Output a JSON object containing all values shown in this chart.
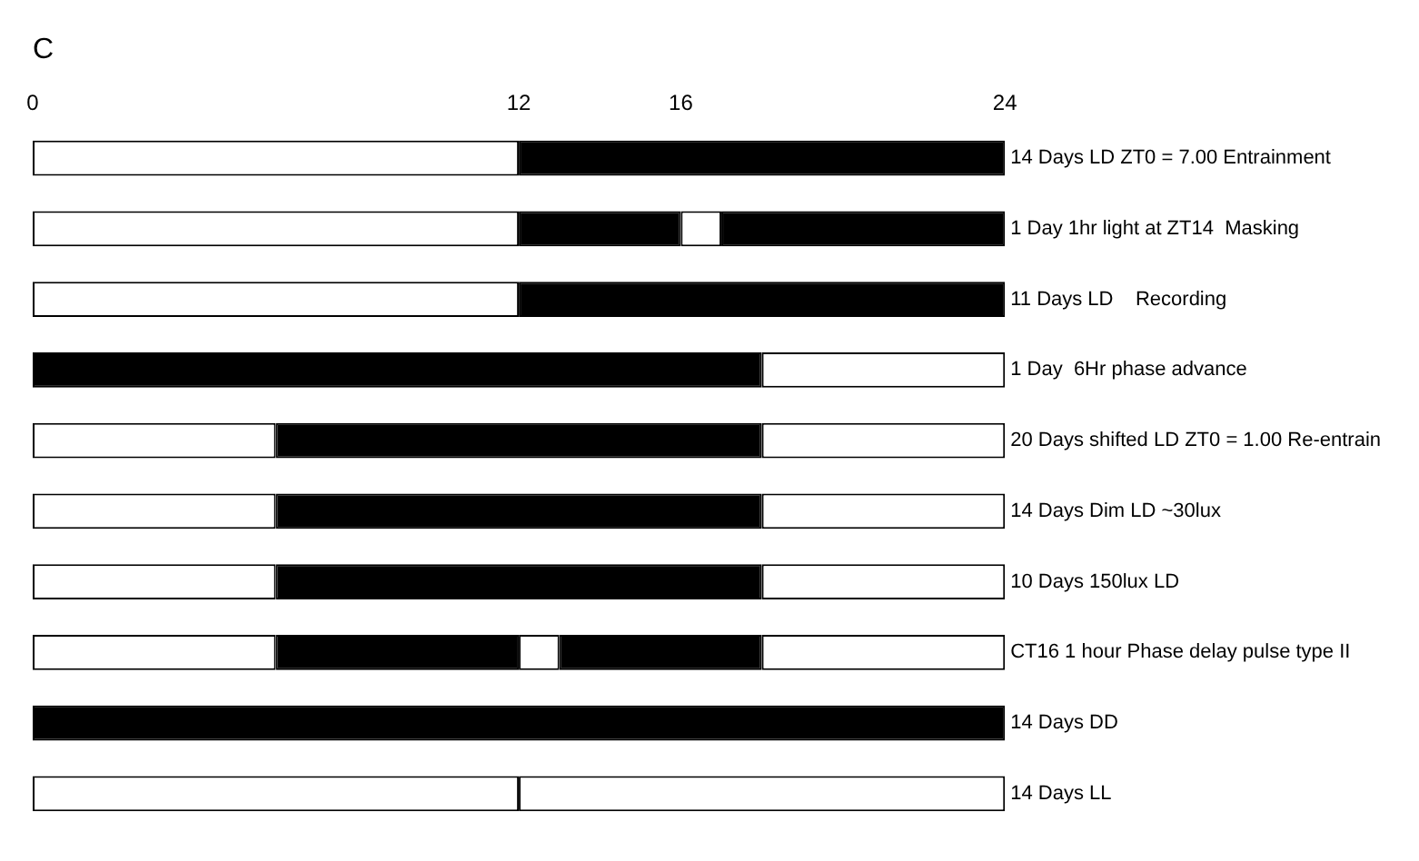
{
  "chart_data": {
    "type": "bar",
    "orientation": "horizontal",
    "stacked": true,
    "title": "C",
    "categories": [
      "14 Days LD ZT0 = 7.00 Entrainment",
      "1 Day 1hr light at ZT14  Masking",
      "11 Days LD    Recording",
      "1 Day  6Hr phase advance",
      "20 Days shifted LD ZT0 = 1.00 Re-entrain",
      "14 Days Dim LD ~30lux",
      "10 Days 150lux LD",
      "CT16 1 hour Phase delay pulse type II",
      "14 Days DD",
      "14 Days LL"
    ],
    "series": [
      {
        "values": [
          12,
          12,
          12,
          18,
          6,
          6,
          6,
          6,
          24,
          12
        ],
        "colors": [
          "#ffffff",
          "#ffffff",
          "#ffffff",
          "#000000",
          "#ffffff",
          "#ffffff",
          "#ffffff",
          "#ffffff",
          "#000000",
          "#ffffff"
        ]
      },
      {
        "values": [
          12,
          4,
          12,
          6,
          12,
          12,
          12,
          6,
          null,
          12
        ],
        "colors": [
          "#000000",
          "#000000",
          "#000000",
          "#ffffff",
          "#000000",
          "#000000",
          "#000000",
          "#000000",
          "#000000",
          "#ffffff"
        ]
      },
      {
        "values": [
          null,
          1,
          null,
          null,
          6,
          6,
          6,
          1,
          null,
          null
        ],
        "colors": [
          "#ffffff",
          "#ffffff",
          "#ffffff",
          "#ffffff",
          "#ffffff",
          "#ffffff",
          "#ffffff",
          "#ffffff",
          "#ffffff",
          "#ffffff"
        ]
      },
      {
        "values": [
          null,
          7,
          null,
          null,
          null,
          null,
          null,
          5,
          null,
          null
        ],
        "colors": [
          "#000000",
          "#000000",
          "#000000",
          "#000000",
          "#000000",
          "#000000",
          "#000000",
          "#000000",
          "#000000",
          "#000000"
        ]
      },
      {
        "values": [
          null,
          null,
          null,
          null,
          null,
          null,
          null,
          6,
          null,
          null
        ],
        "colors": [
          "#ffffff",
          "#ffffff",
          "#ffffff",
          "#ffffff",
          "#ffffff",
          "#ffffff",
          "#ffffff",
          "#ffffff",
          "#ffffff",
          "#ffffff"
        ]
      }
    ],
    "xlim": [
      0,
      24
    ],
    "xticks": [
      0,
      12,
      16,
      24
    ],
    "grid": false,
    "legend": false
  }
}
